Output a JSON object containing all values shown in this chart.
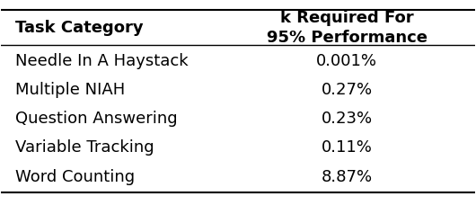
{
  "col1_header": "Task Category",
  "col2_header": "k Required For\n95% Performance",
  "rows": [
    [
      "Needle In A Haystack",
      "0.001%"
    ],
    [
      "Multiple NIAH",
      "0.27%"
    ],
    [
      "Question Answering",
      "0.23%"
    ],
    [
      "Variable Tracking",
      "0.11%"
    ],
    [
      "Word Counting",
      "8.87%"
    ]
  ],
  "background_color": "#ffffff",
  "text_color": "#000000",
  "header_fontsize": 13,
  "body_fontsize": 13,
  "figsize": [
    5.3,
    2.38
  ],
  "dpi": 100
}
